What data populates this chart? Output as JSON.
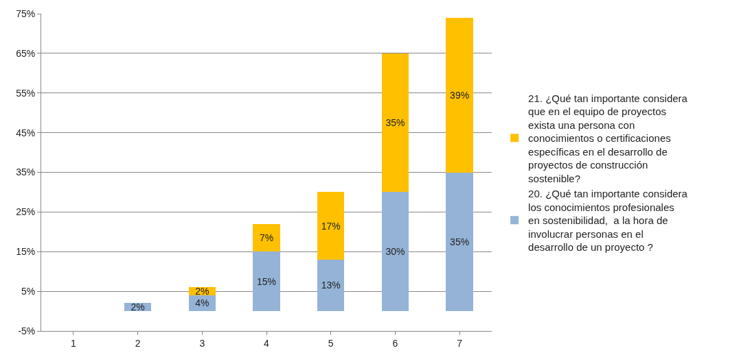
{
  "chart_data": {
    "type": "bar",
    "stacked": true,
    "categories": [
      "1",
      "2",
      "3",
      "4",
      "5",
      "6",
      "7"
    ],
    "series": [
      {
        "name": "20. ¿Qué tan importante considera los conocimientos profesionales  en sostenibilidad,  a la hora de involucrar personas en el desarrollo de un proyecto ?",
        "color": "#95b3d7",
        "values": [
          null,
          2,
          4,
          15,
          13,
          30,
          35
        ],
        "value_labels": [
          null,
          "2%",
          "4%",
          "15%",
          "13%",
          "30%",
          "35%"
        ]
      },
      {
        "name": "21. ¿Qué tan importante considera que en el equipo de proyectos exista una persona con conocimientos o certificaciones específicas en el desarrollo de proyectos de construcción sostenible?",
        "color": "#ffc000",
        "values": [
          null,
          null,
          2,
          7,
          17,
          35,
          39
        ],
        "value_labels": [
          null,
          null,
          "2%",
          "7%",
          "17%",
          "35%",
          "39%"
        ]
      }
    ],
    "ylim": [
      -5,
      75
    ],
    "yticks": [
      {
        "value": -5,
        "label": "-5%"
      },
      {
        "value": 5,
        "label": "5%"
      },
      {
        "value": 15,
        "label": "15%"
      },
      {
        "value": 25,
        "label": "25%"
      },
      {
        "value": 35,
        "label": "35%"
      },
      {
        "value": 45,
        "label": "45%"
      },
      {
        "value": 55,
        "label": "55%"
      },
      {
        "value": 65,
        "label": "65%"
      },
      {
        "value": 75,
        "label": "75%"
      }
    ],
    "grid": "y",
    "legend": "right"
  }
}
